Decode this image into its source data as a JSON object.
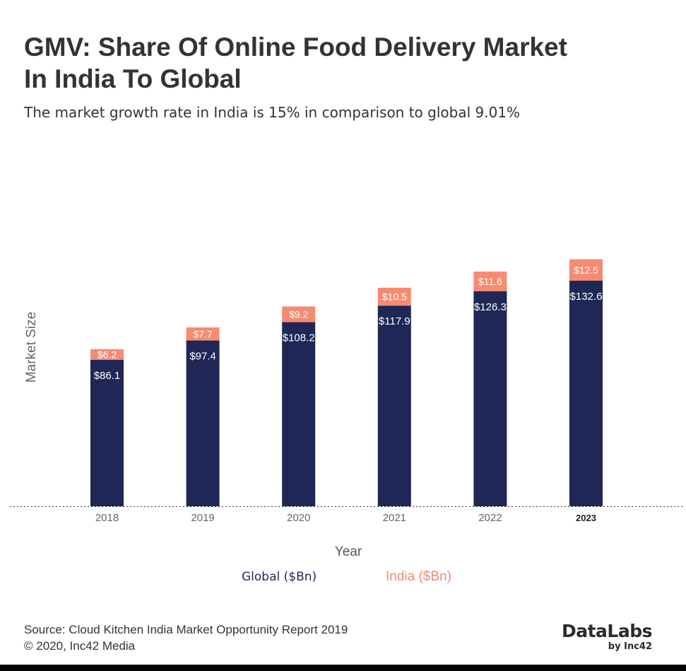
{
  "header": {
    "title_line1": "GMV: Share Of Online Food Delivery Market",
    "title_line2": "In India To Global",
    "subtitle": "The market growth rate in India is 15% in comparison to global 9.01%"
  },
  "chart_data": {
    "type": "bar",
    "stacked": true,
    "categories": [
      "2018",
      "2019",
      "2020",
      "2021",
      "2022",
      "2023"
    ],
    "series": [
      {
        "name": "Global ($Bn)",
        "values": [
          86.1,
          97.4,
          108.2,
          117.9,
          126.3,
          132.6
        ],
        "labels": [
          "$86.1",
          "$97.4",
          "$108.2",
          "$117.9",
          "$126.3",
          "$132.6"
        ],
        "color": "#1f2756"
      },
      {
        "name": "India ($Bn)",
        "values": [
          6.2,
          7.7,
          9.2,
          10.5,
          11.6,
          12.5
        ],
        "labels": [
          "$6.2",
          "$7.7",
          "$9.2",
          "$10.5",
          "$11.6",
          "$12.5"
        ],
        "color": "#f58b73"
      }
    ],
    "xlabel": "Year",
    "ylabel": "Market Size",
    "ylim": [
      0,
      145
    ],
    "highlight_category": "2023",
    "grid": false,
    "legend_position": "bottom"
  },
  "footer": {
    "source": "Source: Cloud Kitchen India Market Opportunity Report 2019",
    "copyright": "© 2020, Inc42 Media",
    "logo_main": "DataLabs",
    "logo_sub": "by Inc42"
  },
  "colors": {
    "global": "#1f2756",
    "india": "#f58b73",
    "text": "#333333",
    "axis_label": "#666666"
  }
}
